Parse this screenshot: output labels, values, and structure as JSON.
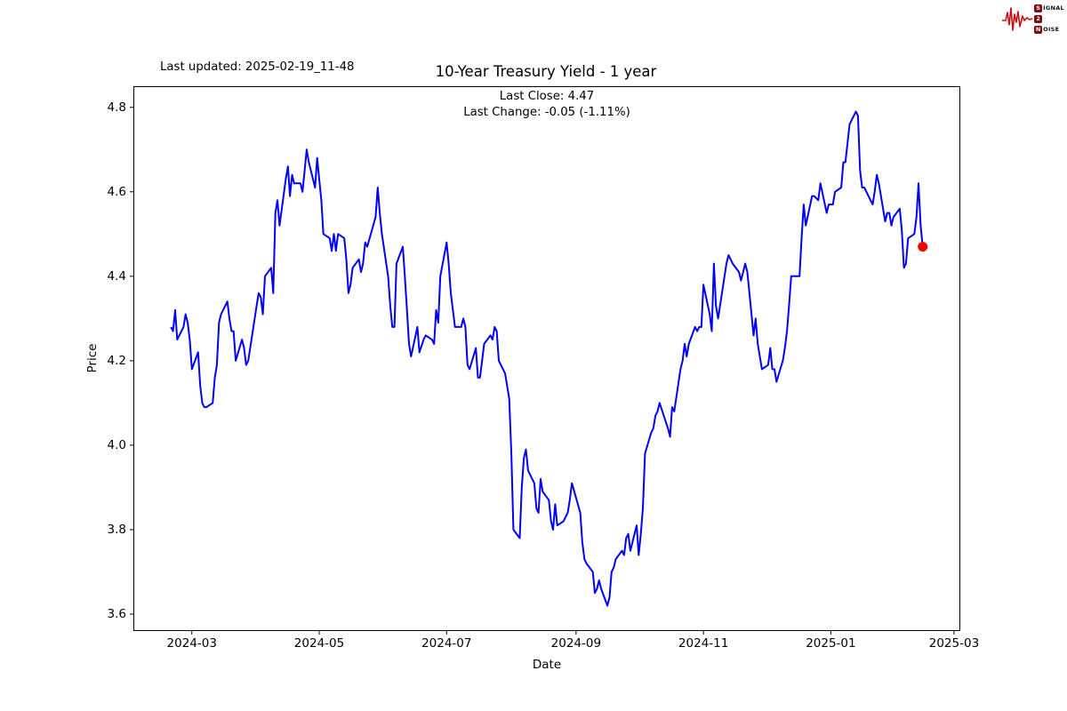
{
  "header": {
    "last_updated": "Last updated: 2025-02-19_11-48",
    "title": "10-Year Treasury Yield - 1 year",
    "subtitle_line1": "Last Close: 4.47",
    "subtitle_line2": "Last Change: -0.05 (-1.11%)"
  },
  "logo": {
    "s": "S",
    "ignal": "IGNAL",
    "two": "2",
    "n": "N",
    "oise": "OISE",
    "wave_color": "#c41414",
    "box_color": "#7d0e0e"
  },
  "chart_data": {
    "type": "line",
    "title": "10-Year Treasury Yield - 1 year",
    "xlabel": "Date",
    "ylabel": "Price",
    "line_color": "#0000ff",
    "marker_color": "#ff0000",
    "grid": false,
    "xlim": [
      "2024-02-02",
      "2025-03-04"
    ],
    "ylim": [
      3.56,
      4.85
    ],
    "yticks": [
      "3.6",
      "3.8",
      "4.0",
      "4.2",
      "4.4",
      "4.6",
      "4.8"
    ],
    "ytick_values": [
      3.6,
      3.8,
      4.0,
      4.2,
      4.4,
      4.6,
      4.8
    ],
    "xticks": [
      {
        "date": "2024-03-01",
        "label": "2024-03"
      },
      {
        "date": "2024-05-01",
        "label": "2024-05"
      },
      {
        "date": "2024-07-01",
        "label": "2024-07"
      },
      {
        "date": "2024-09-01",
        "label": "2024-09"
      },
      {
        "date": "2024-11-01",
        "label": "2024-11"
      },
      {
        "date": "2025-01-01",
        "label": "2025-01"
      },
      {
        "date": "2025-03-01",
        "label": "2025-03"
      }
    ],
    "last_point": {
      "date": "2025-02-14",
      "value": 4.47
    },
    "last_close": 4.47,
    "last_change": "-0.05 (-1.11%)",
    "series": [
      {
        "name": "10-Year Treasury Yield",
        "points": [
          [
            "2024-02-20",
            4.28
          ],
          [
            "2024-02-21",
            4.27
          ],
          [
            "2024-02-22",
            4.32
          ],
          [
            "2024-02-23",
            4.25
          ],
          [
            "2024-02-26",
            4.28
          ],
          [
            "2024-02-27",
            4.31
          ],
          [
            "2024-02-28",
            4.29
          ],
          [
            "2024-02-29",
            4.25
          ],
          [
            "2024-03-01",
            4.18
          ],
          [
            "2024-03-04",
            4.22
          ],
          [
            "2024-03-05",
            4.14
          ],
          [
            "2024-03-06",
            4.1
          ],
          [
            "2024-03-07",
            4.09
          ],
          [
            "2024-03-08",
            4.09
          ],
          [
            "2024-03-11",
            4.1
          ],
          [
            "2024-03-12",
            4.16
          ],
          [
            "2024-03-13",
            4.19
          ],
          [
            "2024-03-14",
            4.29
          ],
          [
            "2024-03-15",
            4.31
          ],
          [
            "2024-03-18",
            4.34
          ],
          [
            "2024-03-19",
            4.3
          ],
          [
            "2024-03-20",
            4.27
          ],
          [
            "2024-03-21",
            4.27
          ],
          [
            "2024-03-22",
            4.2
          ],
          [
            "2024-03-25",
            4.25
          ],
          [
            "2024-03-26",
            4.23
          ],
          [
            "2024-03-27",
            4.19
          ],
          [
            "2024-03-28",
            4.2
          ],
          [
            "2024-04-01",
            4.33
          ],
          [
            "2024-04-02",
            4.36
          ],
          [
            "2024-04-03",
            4.35
          ],
          [
            "2024-04-04",
            4.31
          ],
          [
            "2024-04-05",
            4.4
          ],
          [
            "2024-04-08",
            4.42
          ],
          [
            "2024-04-09",
            4.36
          ],
          [
            "2024-04-10",
            4.55
          ],
          [
            "2024-04-11",
            4.58
          ],
          [
            "2024-04-12",
            4.52
          ],
          [
            "2024-04-15",
            4.63
          ],
          [
            "2024-04-16",
            4.66
          ],
          [
            "2024-04-17",
            4.59
          ],
          [
            "2024-04-18",
            4.64
          ],
          [
            "2024-04-19",
            4.62
          ],
          [
            "2024-04-22",
            4.62
          ],
          [
            "2024-04-23",
            4.6
          ],
          [
            "2024-04-24",
            4.65
          ],
          [
            "2024-04-25",
            4.7
          ],
          [
            "2024-04-26",
            4.67
          ],
          [
            "2024-04-29",
            4.61
          ],
          [
            "2024-04-30",
            4.68
          ],
          [
            "2024-05-01",
            4.63
          ],
          [
            "2024-05-02",
            4.58
          ],
          [
            "2024-05-03",
            4.5
          ],
          [
            "2024-05-06",
            4.49
          ],
          [
            "2024-05-07",
            4.46
          ],
          [
            "2024-05-08",
            4.5
          ],
          [
            "2024-05-09",
            4.46
          ],
          [
            "2024-05-10",
            4.5
          ],
          [
            "2024-05-13",
            4.49
          ],
          [
            "2024-05-14",
            4.44
          ],
          [
            "2024-05-15",
            4.36
          ],
          [
            "2024-05-16",
            4.38
          ],
          [
            "2024-05-17",
            4.42
          ],
          [
            "2024-05-20",
            4.44
          ],
          [
            "2024-05-21",
            4.41
          ],
          [
            "2024-05-22",
            4.43
          ],
          [
            "2024-05-23",
            4.48
          ],
          [
            "2024-05-24",
            4.47
          ],
          [
            "2024-05-28",
            4.54
          ],
          [
            "2024-05-29",
            4.61
          ],
          [
            "2024-05-30",
            4.55
          ],
          [
            "2024-05-31",
            4.5
          ],
          [
            "2024-06-03",
            4.4
          ],
          [
            "2024-06-04",
            4.33
          ],
          [
            "2024-06-05",
            4.28
          ],
          [
            "2024-06-06",
            4.28
          ],
          [
            "2024-06-07",
            4.43
          ],
          [
            "2024-06-10",
            4.47
          ],
          [
            "2024-06-11",
            4.4
          ],
          [
            "2024-06-12",
            4.32
          ],
          [
            "2024-06-13",
            4.24
          ],
          [
            "2024-06-14",
            4.21
          ],
          [
            "2024-06-17",
            4.28
          ],
          [
            "2024-06-18",
            4.22
          ],
          [
            "2024-06-20",
            4.25
          ],
          [
            "2024-06-21",
            4.26
          ],
          [
            "2024-06-24",
            4.25
          ],
          [
            "2024-06-25",
            4.24
          ],
          [
            "2024-06-26",
            4.32
          ],
          [
            "2024-06-27",
            4.29
          ],
          [
            "2024-06-28",
            4.4
          ],
          [
            "2024-07-01",
            4.48
          ],
          [
            "2024-07-02",
            4.43
          ],
          [
            "2024-07-03",
            4.36
          ],
          [
            "2024-07-05",
            4.28
          ],
          [
            "2024-07-08",
            4.28
          ],
          [
            "2024-07-09",
            4.3
          ],
          [
            "2024-07-10",
            4.28
          ],
          [
            "2024-07-11",
            4.19
          ],
          [
            "2024-07-12",
            4.18
          ],
          [
            "2024-07-15",
            4.23
          ],
          [
            "2024-07-16",
            4.16
          ],
          [
            "2024-07-17",
            4.16
          ],
          [
            "2024-07-18",
            4.2
          ],
          [
            "2024-07-19",
            4.24
          ],
          [
            "2024-07-22",
            4.26
          ],
          [
            "2024-07-23",
            4.25
          ],
          [
            "2024-07-24",
            4.28
          ],
          [
            "2024-07-25",
            4.27
          ],
          [
            "2024-07-26",
            4.2
          ],
          [
            "2024-07-29",
            4.17
          ],
          [
            "2024-07-30",
            4.14
          ],
          [
            "2024-07-31",
            4.11
          ],
          [
            "2024-08-01",
            3.98
          ],
          [
            "2024-08-02",
            3.8
          ],
          [
            "2024-08-05",
            3.78
          ],
          [
            "2024-08-06",
            3.9
          ],
          [
            "2024-08-07",
            3.97
          ],
          [
            "2024-08-08",
            3.99
          ],
          [
            "2024-08-09",
            3.94
          ],
          [
            "2024-08-12",
            3.91
          ],
          [
            "2024-08-13",
            3.85
          ],
          [
            "2024-08-14",
            3.84
          ],
          [
            "2024-08-15",
            3.92
          ],
          [
            "2024-08-16",
            3.89
          ],
          [
            "2024-08-19",
            3.87
          ],
          [
            "2024-08-20",
            3.82
          ],
          [
            "2024-08-21",
            3.8
          ],
          [
            "2024-08-22",
            3.86
          ],
          [
            "2024-08-23",
            3.81
          ],
          [
            "2024-08-26",
            3.82
          ],
          [
            "2024-08-27",
            3.83
          ],
          [
            "2024-08-28",
            3.84
          ],
          [
            "2024-08-29",
            3.87
          ],
          [
            "2024-08-30",
            3.91
          ],
          [
            "2024-09-03",
            3.84
          ],
          [
            "2024-09-04",
            3.77
          ],
          [
            "2024-09-05",
            3.73
          ],
          [
            "2024-09-06",
            3.72
          ],
          [
            "2024-09-09",
            3.7
          ],
          [
            "2024-09-10",
            3.65
          ],
          [
            "2024-09-11",
            3.66
          ],
          [
            "2024-09-12",
            3.68
          ],
          [
            "2024-09-13",
            3.66
          ],
          [
            "2024-09-16",
            3.62
          ],
          [
            "2024-09-17",
            3.64
          ],
          [
            "2024-09-18",
            3.7
          ],
          [
            "2024-09-19",
            3.71
          ],
          [
            "2024-09-20",
            3.73
          ],
          [
            "2024-09-23",
            3.75
          ],
          [
            "2024-09-24",
            3.74
          ],
          [
            "2024-09-25",
            3.78
          ],
          [
            "2024-09-26",
            3.79
          ],
          [
            "2024-09-27",
            3.75
          ],
          [
            "2024-09-30",
            3.81
          ],
          [
            "2024-10-01",
            3.74
          ],
          [
            "2024-10-02",
            3.79
          ],
          [
            "2024-10-03",
            3.85
          ],
          [
            "2024-10-04",
            3.98
          ],
          [
            "2024-10-07",
            4.03
          ],
          [
            "2024-10-08",
            4.04
          ],
          [
            "2024-10-09",
            4.07
          ],
          [
            "2024-10-10",
            4.08
          ],
          [
            "2024-10-11",
            4.1
          ],
          [
            "2024-10-15",
            4.04
          ],
          [
            "2024-10-16",
            4.02
          ],
          [
            "2024-10-17",
            4.09
          ],
          [
            "2024-10-18",
            4.08
          ],
          [
            "2024-10-21",
            4.18
          ],
          [
            "2024-10-22",
            4.2
          ],
          [
            "2024-10-23",
            4.24
          ],
          [
            "2024-10-24",
            4.21
          ],
          [
            "2024-10-25",
            4.24
          ],
          [
            "2024-10-28",
            4.28
          ],
          [
            "2024-10-29",
            4.27
          ],
          [
            "2024-10-30",
            4.28
          ],
          [
            "2024-10-31",
            4.28
          ],
          [
            "2024-11-01",
            4.38
          ],
          [
            "2024-11-04",
            4.31
          ],
          [
            "2024-11-05",
            4.27
          ],
          [
            "2024-11-06",
            4.43
          ],
          [
            "2024-11-07",
            4.33
          ],
          [
            "2024-11-08",
            4.3
          ],
          [
            "2024-11-12",
            4.43
          ],
          [
            "2024-11-13",
            4.45
          ],
          [
            "2024-11-14",
            4.44
          ],
          [
            "2024-11-15",
            4.43
          ],
          [
            "2024-11-18",
            4.41
          ],
          [
            "2024-11-19",
            4.39
          ],
          [
            "2024-11-20",
            4.41
          ],
          [
            "2024-11-21",
            4.43
          ],
          [
            "2024-11-22",
            4.41
          ],
          [
            "2024-11-25",
            4.26
          ],
          [
            "2024-11-26",
            4.3
          ],
          [
            "2024-11-27",
            4.24
          ],
          [
            "2024-11-29",
            4.18
          ],
          [
            "2024-12-02",
            4.19
          ],
          [
            "2024-12-03",
            4.23
          ],
          [
            "2024-12-04",
            4.18
          ],
          [
            "2024-12-05",
            4.18
          ],
          [
            "2024-12-06",
            4.15
          ],
          [
            "2024-12-09",
            4.2
          ],
          [
            "2024-12-10",
            4.23
          ],
          [
            "2024-12-11",
            4.27
          ],
          [
            "2024-12-12",
            4.33
          ],
          [
            "2024-12-13",
            4.4
          ],
          [
            "2024-12-16",
            4.4
          ],
          [
            "2024-12-17",
            4.4
          ],
          [
            "2024-12-18",
            4.49
          ],
          [
            "2024-12-19",
            4.57
          ],
          [
            "2024-12-20",
            4.52
          ],
          [
            "2024-12-23",
            4.59
          ],
          [
            "2024-12-24",
            4.59
          ],
          [
            "2024-12-26",
            4.58
          ],
          [
            "2024-12-27",
            4.62
          ],
          [
            "2024-12-30",
            4.55
          ],
          [
            "2024-12-31",
            4.57
          ],
          [
            "2025-01-02",
            4.57
          ],
          [
            "2025-01-03",
            4.6
          ],
          [
            "2025-01-06",
            4.61
          ],
          [
            "2025-01-07",
            4.67
          ],
          [
            "2025-01-08",
            4.67
          ],
          [
            "2025-01-10",
            4.76
          ],
          [
            "2025-01-13",
            4.79
          ],
          [
            "2025-01-14",
            4.78
          ],
          [
            "2025-01-15",
            4.65
          ],
          [
            "2025-01-16",
            4.61
          ],
          [
            "2025-01-17",
            4.61
          ],
          [
            "2025-01-21",
            4.57
          ],
          [
            "2025-01-22",
            4.6
          ],
          [
            "2025-01-23",
            4.64
          ],
          [
            "2025-01-24",
            4.62
          ],
          [
            "2025-01-27",
            4.53
          ],
          [
            "2025-01-28",
            4.55
          ],
          [
            "2025-01-29",
            4.55
          ],
          [
            "2025-01-30",
            4.52
          ],
          [
            "2025-01-31",
            4.54
          ],
          [
            "2025-02-03",
            4.56
          ],
          [
            "2025-02-04",
            4.51
          ],
          [
            "2025-02-05",
            4.42
          ],
          [
            "2025-02-06",
            4.43
          ],
          [
            "2025-02-07",
            4.49
          ],
          [
            "2025-02-10",
            4.5
          ],
          [
            "2025-02-11",
            4.54
          ],
          [
            "2025-02-12",
            4.62
          ],
          [
            "2025-02-13",
            4.52
          ],
          [
            "2025-02-14",
            4.47
          ]
        ]
      }
    ]
  }
}
